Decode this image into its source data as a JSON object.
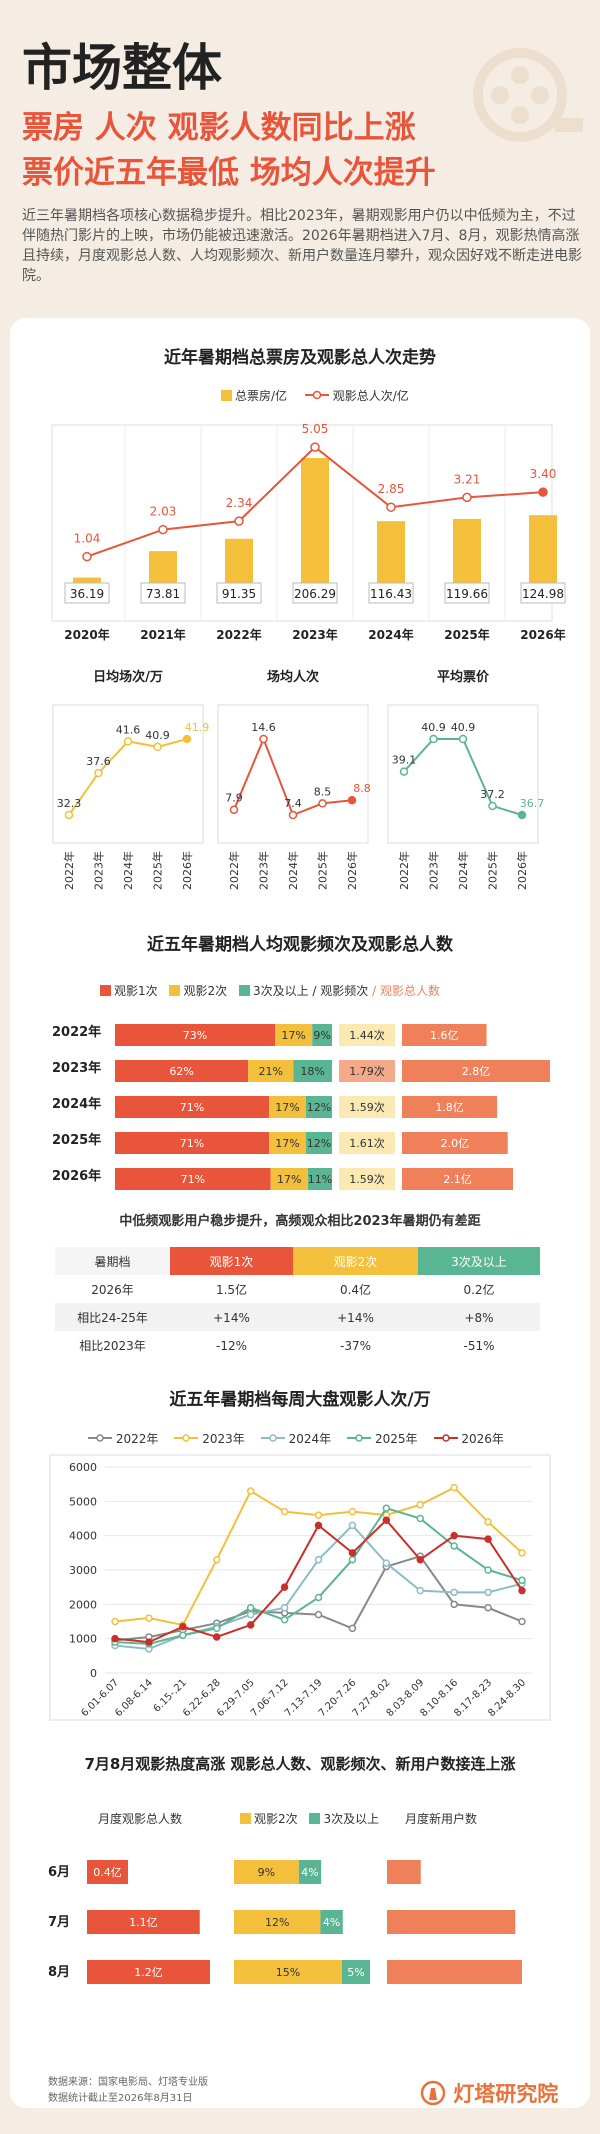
{
  "header": {
    "title": "市场整体",
    "subtitle1": "票房 人次 观影人数同比上涨",
    "subtitle2": "票价近五年最低 场均人次提升",
    "intro": "近三年暑期档各项核心数据稳步提升。相比2023年，暑期观影用户仍以中低频为主，不过伴随热门影片的上映，市场仍能被迅速激活。2026年暑期档进入7月、8月，观影热情高涨且持续，月度观影总人数、人均观影频次、新用户数量连月攀升，观众因好戏不断走进电影院。"
  },
  "colors": {
    "orange_red": "#e8553a",
    "yellow": "#f4c03b",
    "green": "#5ab593",
    "salmon": "#f0805a",
    "gray": "#888888"
  },
  "sec1": {
    "title": "近年暑期档总票房及观影总人次走势",
    "legend": {
      "boxoffice": "总票房/亿",
      "audience": "观影总人次/亿"
    }
  },
  "sec2": {
    "title": "近五年暑期档人均观影频次及观影总人数",
    "legend": {
      "once": "观影1次",
      "twice": "观影2次",
      "thrice": "3次及以上",
      "slash": " / ",
      "freq": "观影频次",
      "sep": " / ",
      "total": "观影总人数"
    },
    "subtitle": "中低频观影用户稳步提升，高频观众相比2023年暑期仍有差距"
  },
  "sec3": {
    "title": "近五年暑期档每周大盘观影人次/万"
  },
  "sec4": {
    "title": "7月8月观影热度高涨 观影总人数、观影频次、新用户数接连上涨",
    "legend": {
      "total": "月度观影总人数",
      "twice": "观影2次",
      "thrice": "3次及以上",
      "newusers": "月度新用户数"
    }
  },
  "table": {
    "headers": [
      "暑期档",
      "观影1次",
      "观影2次",
      "3次及以上"
    ],
    "rows": [
      [
        "2026年",
        "1.5亿",
        "0.4亿",
        "0.2亿"
      ],
      [
        "相比24-25年",
        "+14%",
        "+14%",
        "+8%"
      ],
      [
        "相比2023年",
        "-12%",
        "-37%",
        "-51%"
      ]
    ]
  },
  "footer": {
    "source": "数据来源：国家电影局、灯塔专业版",
    "date": "数据统计截止至2026年8月31日",
    "brand": "灯塔研究院"
  },
  "chart_data": [
    {
      "type": "bar",
      "title": "近年暑期档总票房及观影总人次走势",
      "categories": [
        "2020年",
        "2021年",
        "2022年",
        "2023年",
        "2024年",
        "2025年",
        "2026年"
      ],
      "series": [
        {
          "name": "总票房/亿",
          "type": "bar",
          "values": [
            36.19,
            73.81,
            91.35,
            206.29,
            116.43,
            119.66,
            124.98
          ]
        },
        {
          "name": "观影总人次/亿",
          "type": "line",
          "values": [
            1.04,
            2.03,
            2.34,
            5.05,
            2.85,
            3.21,
            3.4
          ]
        }
      ]
    },
    {
      "type": "line",
      "title": "日均场次/万",
      "categories": [
        "2022年",
        "2023年",
        "2024年",
        "2025年",
        "2026年"
      ],
      "values": [
        32.3,
        37.6,
        41.6,
        40.9,
        41.9
      ]
    },
    {
      "type": "line",
      "title": "场均人次",
      "categories": [
        "2022年",
        "2023年",
        "2024年",
        "2025年",
        "2026年"
      ],
      "values": [
        7.9,
        14.6,
        7.4,
        8.5,
        8.8
      ]
    },
    {
      "type": "line",
      "title": "平均票价",
      "categories": [
        "2022年",
        "2023年",
        "2024年",
        "2025年",
        "2026年"
      ],
      "values": [
        39.1,
        40.9,
        40.9,
        37.2,
        36.7
      ]
    },
    {
      "type": "bar",
      "title": "近五年暑期档人均观影频次及观影总人数",
      "categories": [
        "2022年",
        "2023年",
        "2024年",
        "2025年",
        "2026年"
      ],
      "series": [
        {
          "name": "观影1次",
          "values": [
            73,
            62,
            71,
            71,
            71
          ]
        },
        {
          "name": "观影2次",
          "values": [
            17,
            21,
            17,
            17,
            17
          ]
        },
        {
          "name": "3次及以上",
          "values": [
            9,
            18,
            12,
            12,
            11
          ]
        }
      ],
      "freq": [
        "1.44次",
        "1.79次",
        "1.59次",
        "1.61次",
        "1.59次"
      ],
      "total": [
        "1.6亿",
        "2.8亿",
        "1.8亿",
        "2.0亿",
        "2.1亿"
      ],
      "total_values": [
        1.6,
        2.8,
        1.8,
        2.0,
        2.1
      ]
    },
    {
      "type": "line",
      "title": "近五年暑期档每周大盘观影人次/万",
      "x": [
        "6.01-6.07",
        "6.08-6.14",
        "6.15-.21",
        "6.22-6.28",
        "6.29-7.05",
        "7.06-7.12",
        "7.13-7.19",
        "7.20-7.26",
        "7.27-8.02",
        "8.03-8.09",
        "8.10-8.16",
        "8.17-8.23",
        "8.24-8.30"
      ],
      "ylim": [
        0,
        6000
      ],
      "yticks": [
        0,
        1000,
        2000,
        3000,
        4000,
        5000,
        6000
      ],
      "series": [
        {
          "name": "2022年",
          "values": [
            950,
            1050,
            1250,
            1450,
            1800,
            1750,
            1700,
            1300,
            3100,
            3400,
            2000,
            1900,
            1500
          ]
        },
        {
          "name": "2023年",
          "values": [
            1500,
            1600,
            1400,
            3300,
            5300,
            4700,
            4600,
            4700,
            4600,
            4900,
            5400,
            4400,
            3500
          ]
        },
        {
          "name": "2024年",
          "values": [
            800,
            700,
            1100,
            1350,
            1700,
            1900,
            3300,
            4300,
            3200,
            2400,
            2350,
            2350,
            2600
          ]
        },
        {
          "name": "2025年",
          "values": [
            900,
            850,
            1100,
            1300,
            1900,
            1550,
            2200,
            3300,
            4800,
            4500,
            3700,
            3000,
            2700
          ]
        },
        {
          "name": "2026年",
          "values": [
            1000,
            900,
            1350,
            1050,
            1400,
            2500,
            4300,
            3500,
            4450,
            3300,
            4000,
            3900,
            2400
          ]
        }
      ]
    },
    {
      "type": "bar",
      "title": "7月8月观影热度高涨 观影总人数、观影频次、新用户数接连上涨",
      "categories": [
        "6月",
        "7月",
        "8月"
      ],
      "series": [
        {
          "name": "月度观影总人数",
          "values": [
            0.4,
            1.1,
            1.2
          ],
          "labels": [
            "0.4亿",
            "1.1亿",
            "1.2亿"
          ]
        },
        {
          "name": "观影2次",
          "values": [
            9,
            12,
            15
          ],
          "labels": [
            "9%",
            "12%",
            "15%"
          ]
        },
        {
          "name": "3次及以上",
          "values": [
            4,
            4,
            5
          ],
          "labels": [
            "4%",
            "4%",
            "5%"
          ]
        },
        {
          "name": "月度新用户数",
          "values": [
            0.25,
            0.95,
            1.0
          ]
        }
      ]
    }
  ]
}
